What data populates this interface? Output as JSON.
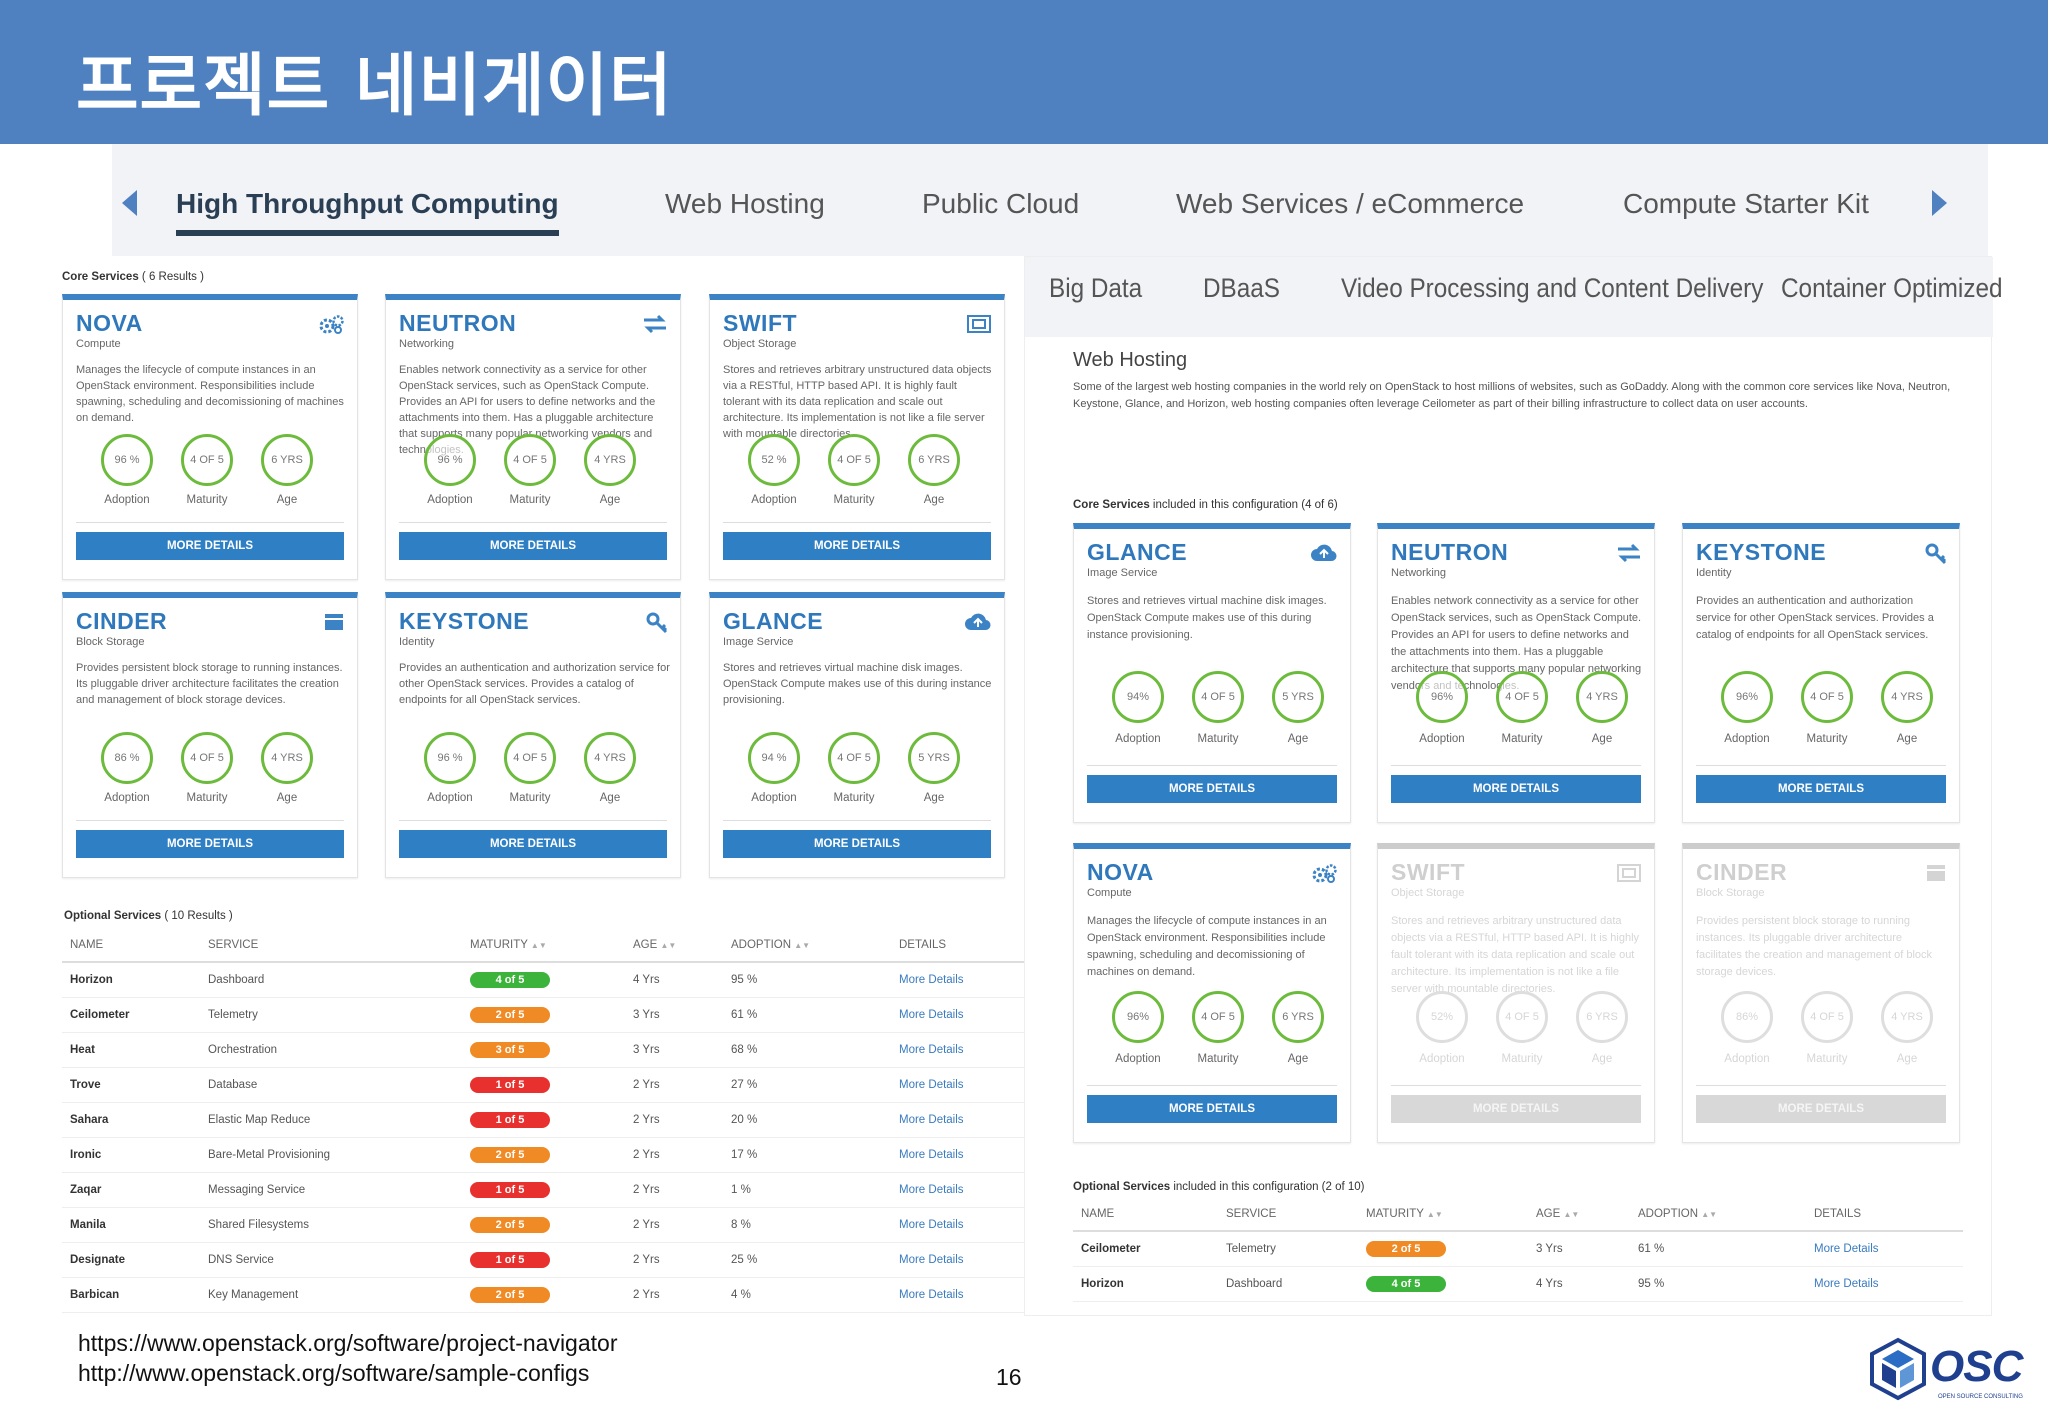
{
  "title": "프로젝트 네비게이터",
  "colors": {
    "header": "#4f81c1",
    "card_accent": "#3c83c6",
    "green": "#3cb43c",
    "orange": "#f08a24",
    "red": "#e8312f"
  },
  "tabs": [
    "High Throughput Computing",
    "Web Hosting",
    "Public Cloud",
    "Web Services / eCommerce",
    "Compute Starter Kit"
  ],
  "subtabs": [
    "Big Data",
    "DBaaS",
    "Video Processing and Content Delivery",
    "Container Optimized"
  ],
  "left": {
    "core_label": "Core Services",
    "core_count": "( 6 Results )",
    "cards": [
      {
        "name": "NOVA",
        "type": "Compute",
        "icon": "gears-icon",
        "desc": "Manages the lifecycle of compute instances in an OpenStack environment. Responsibilities include spawning, scheduling and decomissioning of machines on demand.",
        "adoption": "96 %",
        "maturity": "4 OF 5",
        "age": "6 YRS"
      },
      {
        "name": "NEUTRON",
        "type": "Networking",
        "icon": "exchange-arrows-icon",
        "desc": "Enables network connectivity as a service for other OpenStack services, such as OpenStack Compute. Provides an API for users to define networks and the attachments into them. Has a pluggable architecture that supports many popular networking vendors and technologies.",
        "adoption": "96 %",
        "maturity": "4 OF 5",
        "age": "4 YRS"
      },
      {
        "name": "SWIFT",
        "type": "Object Storage",
        "icon": "object-storage-icon",
        "desc": "Stores and retrieves arbitrary unstructured data objects via a RESTful, HTTP based API. It is highly fault tolerant with its data replication and scale out architecture. Its implementation is not like a file server with mountable directories.",
        "adoption": "52 %",
        "maturity": "4 OF 5",
        "age": "6 YRS"
      },
      {
        "name": "CINDER",
        "type": "Block Storage",
        "icon": "block-storage-icon",
        "desc": "Provides persistent block storage to running instances. Its pluggable driver architecture facilitates the creation and management of block storage devices.",
        "adoption": "86 %",
        "maturity": "4 OF 5",
        "age": "4 YRS"
      },
      {
        "name": "KEYSTONE",
        "type": "Identity",
        "icon": "key-icon",
        "desc": "Provides an authentication and authorization service for other OpenStack services. Provides a catalog of endpoints for all OpenStack services.",
        "adoption": "96 %",
        "maturity": "4 OF 5",
        "age": "4 YRS"
      },
      {
        "name": "GLANCE",
        "type": "Image Service",
        "icon": "cloud-upload-icon",
        "desc": "Stores and retrieves virtual machine disk images. OpenStack Compute makes use of this during instance provisioning.",
        "adoption": "94 %",
        "maturity": "4 OF 5",
        "age": "5 YRS"
      }
    ],
    "optional_label": "Optional Services",
    "optional_count": "( 10 Results )",
    "columns": [
      "NAME",
      "SERVICE",
      "MATURITY",
      "AGE",
      "ADOPTION",
      "DETAILS"
    ],
    "rows": [
      {
        "name": "Horizon",
        "service": "Dashboard",
        "maturity": "4 of 5",
        "color": "#3cb43c",
        "age": "4 Yrs",
        "adoption": "95 %",
        "details": "More Details"
      },
      {
        "name": "Ceilometer",
        "service": "Telemetry",
        "maturity": "2 of 5",
        "color": "#f08a24",
        "age": "3 Yrs",
        "adoption": "61 %",
        "details": "More Details"
      },
      {
        "name": "Heat",
        "service": "Orchestration",
        "maturity": "3 of 5",
        "color": "#f08a24",
        "age": "3 Yrs",
        "adoption": "68 %",
        "details": "More Details"
      },
      {
        "name": "Trove",
        "service": "Database",
        "maturity": "1 of 5",
        "color": "#e8312f",
        "age": "2 Yrs",
        "adoption": "27 %",
        "details": "More Details"
      },
      {
        "name": "Sahara",
        "service": "Elastic Map Reduce",
        "maturity": "1 of 5",
        "color": "#e8312f",
        "age": "2 Yrs",
        "adoption": "20 %",
        "details": "More Details"
      },
      {
        "name": "Ironic",
        "service": "Bare-Metal Provisioning",
        "maturity": "2 of 5",
        "color": "#f08a24",
        "age": "2 Yrs",
        "adoption": "17 %",
        "details": "More Details"
      },
      {
        "name": "Zaqar",
        "service": "Messaging Service",
        "maturity": "1 of 5",
        "color": "#e8312f",
        "age": "2 Yrs",
        "adoption": "1 %",
        "details": "More Details"
      },
      {
        "name": "Manila",
        "service": "Shared Filesystems",
        "maturity": "2 of 5",
        "color": "#f08a24",
        "age": "2 Yrs",
        "adoption": "8 %",
        "details": "More Details"
      },
      {
        "name": "Designate",
        "service": "DNS Service",
        "maturity": "1 of 5",
        "color": "#e8312f",
        "age": "2 Yrs",
        "adoption": "25 %",
        "details": "More Details"
      },
      {
        "name": "Barbican",
        "service": "Key Management",
        "maturity": "2 of 5",
        "color": "#f08a24",
        "age": "2 Yrs",
        "adoption": "4 %",
        "details": "More Details"
      }
    ]
  },
  "right": {
    "heading": "Web Hosting",
    "intro": "Some of the largest web hosting companies in the world rely on OpenStack to host millions of websites, such as GoDaddy. Along with the common core services like Nova, Neutron, Keystone, Glance, and Horizon, web hosting companies often leverage Ceilometer as part of their billing infrastructure to collect data on user accounts.",
    "core_label": "Core Services",
    "core_note": "included in this configuration (4 of 6)",
    "cards": [
      {
        "name": "GLANCE",
        "type": "Image Service",
        "icon": "cloud-upload-icon",
        "desc": "Stores and retrieves virtual machine disk images. OpenStack Compute makes use of this during instance provisioning.",
        "adoption": "94%",
        "maturity": "4 OF 5",
        "age": "5 YRS",
        "disabled": false
      },
      {
        "name": "NEUTRON",
        "type": "Networking",
        "icon": "exchange-arrows-icon",
        "desc": "Enables network connectivity as a service for other OpenStack services, such as OpenStack Compute. Provides an API for users to define networks and the attachments into them. Has a pluggable architecture that supports many popular networking vendors and technologies.",
        "adoption": "96%",
        "maturity": "4 OF 5",
        "age": "4 YRS",
        "disabled": false
      },
      {
        "name": "KEYSTONE",
        "type": "Identity",
        "icon": "key-icon",
        "desc": "Provides an authentication and authorization service for other OpenStack services. Provides a catalog of endpoints for all OpenStack services.",
        "adoption": "96%",
        "maturity": "4 OF 5",
        "age": "4 YRS",
        "disabled": false
      },
      {
        "name": "NOVA",
        "type": "Compute",
        "icon": "gears-icon",
        "desc": "Manages the lifecycle of compute instances in an OpenStack environment. Responsibilities include spawning, scheduling and decomissioning of machines on demand.",
        "adoption": "96%",
        "maturity": "4 OF 5",
        "age": "6 YRS",
        "disabled": false
      },
      {
        "name": "SWIFT",
        "type": "Object Storage",
        "icon": "object-storage-icon",
        "desc": "Stores and retrieves arbitrary unstructured data objects via a RESTful, HTTP based API. It is highly fault tolerant with its data replication and scale out architecture. Its implementation is not like a file server with mountable directories.",
        "adoption": "52%",
        "maturity": "4 OF 5",
        "age": "6 YRS",
        "disabled": true
      },
      {
        "name": "CINDER",
        "type": "Block Storage",
        "icon": "block-storage-icon",
        "desc": "Provides persistent block storage to running instances. Its pluggable driver architecture facilitates the creation and management of block storage devices.",
        "adoption": "86%",
        "maturity": "4 OF 5",
        "age": "4 YRS",
        "disabled": true
      }
    ],
    "optional_label": "Optional Services",
    "optional_note": "included in this configuration (2 of 10)",
    "columns": [
      "NAME",
      "SERVICE",
      "MATURITY",
      "AGE",
      "ADOPTION",
      "DETAILS"
    ],
    "rows": [
      {
        "name": "Ceilometer",
        "service": "Telemetry",
        "maturity": "2 of 5",
        "color": "#f08a24",
        "age": "3 Yrs",
        "adoption": "61 %",
        "details": "More Details"
      },
      {
        "name": "Horizon",
        "service": "Dashboard",
        "maturity": "4 of 5",
        "color": "#3cb43c",
        "age": "4 Yrs",
        "adoption": "95 %",
        "details": "More Details"
      }
    ]
  },
  "card_labels": {
    "adoption": "Adoption",
    "maturity": "Maturity",
    "age": "Age",
    "button": "MORE DETAILS"
  },
  "footer": {
    "url1": "https://www.openstack.org/software/project-navigator",
    "url2": "http://www.openstack.org/software/sample-configs",
    "page": "16",
    "logo": "OSC",
    "logo_sub": "OPEN SOURCE CONSULTING"
  }
}
